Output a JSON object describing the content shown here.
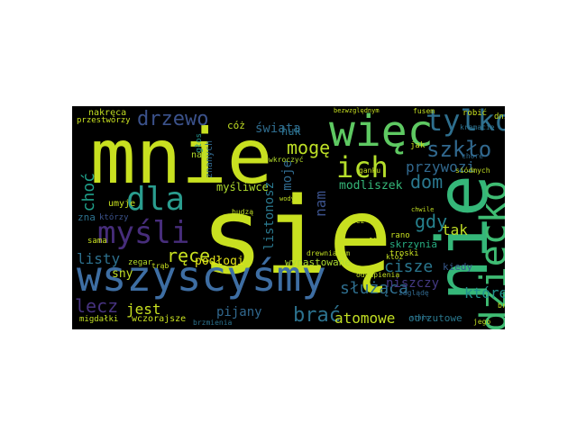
{
  "words": [
    {
      "text": "się",
      "color": "#c8e020"
    },
    {
      "text": "mnie",
      "color": "#c8e020"
    },
    {
      "text": "nie",
      "color": "#35b779"
    },
    {
      "text": "wszyscyśmy",
      "color": "#3e6ea3"
    },
    {
      "text": "dziecko",
      "color": "#3fbc73"
    },
    {
      "text": "więc",
      "color": "#5ec962"
    },
    {
      "text": "ich",
      "color": "#b5de2b"
    },
    {
      "text": "dla",
      "color": "#2a9d8f"
    },
    {
      "text": "myśli",
      "color": "#472d7b"
    },
    {
      "text": "tylko",
      "color": "#2e6f8e"
    },
    {
      "text": "drzewo",
      "color": "#3b528b"
    },
    {
      "text": "szkło",
      "color": "#31688e"
    },
    {
      "text": "mogę",
      "color": "#bddf26"
    },
    {
      "text": "dom",
      "color": "#2a788e"
    },
    {
      "text": "ręce",
      "color": "#c8e020"
    },
    {
      "text": "brać",
      "color": "#2c728e"
    },
    {
      "text": "lecz",
      "color": "#46327e"
    },
    {
      "text": "gdy",
      "color": "#26828e"
    },
    {
      "text": "tak",
      "color": "#c0df25"
    },
    {
      "text": "cisze",
      "color": "#2a768e"
    },
    {
      "text": "służąca",
      "color": "#2e6e8e"
    },
    {
      "text": "której",
      "color": "#21918c"
    },
    {
      "text": "atomowe",
      "color": "#c2df23"
    },
    {
      "text": "niszczy",
      "color": "#443983"
    },
    {
      "text": "przywozi",
      "color": "#31688e"
    },
    {
      "text": "choć",
      "color": "#1f9e89"
    },
    {
      "text": "świata",
      "color": "#2f6c8e"
    },
    {
      "text": "modliszek",
      "color": "#35b779"
    },
    {
      "text": "listy",
      "color": "#2d708e"
    },
    {
      "text": "jest",
      "color": "#c8e020"
    },
    {
      "text": "pijany",
      "color": "#31688e"
    },
    {
      "text": "podłogi",
      "color": "#e3e418"
    },
    {
      "text": "myśliwce",
      "color": "#b0dd2f"
    },
    {
      "text": "huk",
      "color": "#2c728e"
    },
    {
      "text": "nam",
      "color": "#3b528b"
    },
    {
      "text": "moje",
      "color": "#306a8e"
    },
    {
      "text": "listonosz",
      "color": "#2a788e"
    },
    {
      "text": "sny",
      "color": "#c2df23"
    },
    {
      "text": "skrzynia",
      "color": "#27ad81"
    },
    {
      "text": "kiedy",
      "color": "#38598c"
    },
    {
      "text": "odrzutowe",
      "color": "#2a788e"
    },
    {
      "text": "wypastowane",
      "color": "#addc30"
    },
    {
      "text": "wczorajsze",
      "color": "#c8e020"
    },
    {
      "text": "migdałki",
      "color": "#c2df23"
    },
    {
      "text": "nakręca",
      "color": "#c2df23"
    },
    {
      "text": "przestworzy",
      "color": "#c8e020"
    },
    {
      "text": "zegar",
      "color": "#b5de2b"
    },
    {
      "text": "umyje",
      "color": "#c8e020"
    },
    {
      "text": "zna",
      "color": "#2c728e"
    },
    {
      "text": "sama",
      "color": "#c8e020"
    },
    {
      "text": "którzy",
      "color": "#3b528b"
    },
    {
      "text": "nad",
      "color": "#b5de2b"
    },
    {
      "text": "cóż",
      "color": "#c2df23"
    },
    {
      "text": "głos",
      "color": "#21918c"
    },
    {
      "text": "znanych",
      "color": "#31688e"
    },
    {
      "text": "jak",
      "color": "#c8e020"
    },
    {
      "text": "chore",
      "color": "#306a8e"
    },
    {
      "text": "dnie",
      "color": "#c2df23"
    },
    {
      "text": "robić",
      "color": "#c8e020"
    },
    {
      "text": "kramacie",
      "color": "#2c728e"
    },
    {
      "text": "siódmych",
      "color": "#c2df23"
    },
    {
      "text": "bezwzględnym",
      "color": "#c8e020"
    },
    {
      "text": "fusem",
      "color": "#c2df23"
    },
    {
      "text": "troski",
      "color": "#c8e020"
    },
    {
      "text": "zaglądę",
      "color": "#31688e"
    },
    {
      "text": "rano",
      "color": "#c8e020"
    },
    {
      "text": "ktoż",
      "color": "#c2df23"
    },
    {
      "text": "drewnianym",
      "color": "#c2df23"
    },
    {
      "text": "odkupienia",
      "color": "#c2df23"
    },
    {
      "text": "wkroczyć",
      "color": "#b5de2b"
    },
    {
      "text": "budzą",
      "color": "#c2df23"
    },
    {
      "text": "ganku",
      "color": "#c8e020"
    },
    {
      "text": "brzmienia",
      "color": "#2c728e"
    },
    {
      "text": "brelą",
      "color": "#c8e020"
    },
    {
      "text": "jego",
      "color": "#c2df23"
    },
    {
      "text": "bez",
      "color": "#c2df23"
    },
    {
      "text": "walki",
      "color": "#c8e020"
    },
    {
      "text": "stało",
      "color": "#2c728e"
    },
    {
      "text": "wody",
      "color": "#c2df23"
    },
    {
      "text": "chwile",
      "color": "#c2df23"
    },
    {
      "text": "trąb",
      "color": "#c8e020"
    }
  ]
}
